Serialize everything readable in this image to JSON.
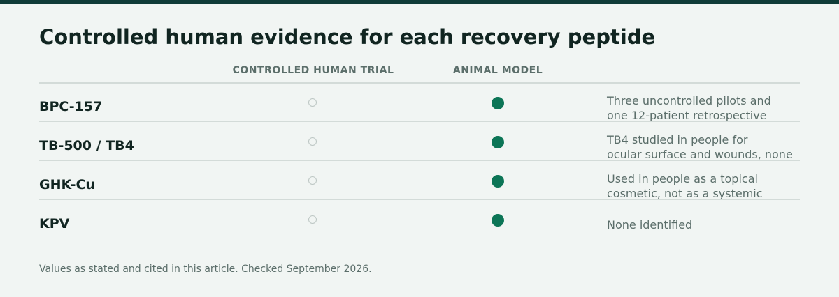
{
  "title": "Controlled human evidence for each recovery peptide",
  "columns": {
    "controlled_trial": "CONTROLLED HUMAN TRIAL",
    "animal_model": "ANIMAL MODEL"
  },
  "colors": {
    "accent": "#0c7556",
    "header_bar": "#103c38",
    "empty_marker": "#bcc6c3"
  },
  "rows": [
    {
      "name": "BPC-157",
      "controlled_human_trial": false,
      "animal_model": true,
      "note_lines": [
        "Three uncontrolled pilots and",
        "one 12-patient retrospective"
      ]
    },
    {
      "name": "TB-500 / TB4",
      "controlled_human_trial": false,
      "animal_model": true,
      "note_lines": [
        "TB4 studied in people for",
        "ocular surface and wounds, none"
      ]
    },
    {
      "name": "GHK-Cu",
      "controlled_human_trial": false,
      "animal_model": true,
      "note_lines": [
        "Used in people as a topical",
        "cosmetic, not as a systemic"
      ]
    },
    {
      "name": "KPV",
      "controlled_human_trial": false,
      "animal_model": true,
      "note_lines": [
        "None identified"
      ]
    }
  ],
  "footnote": "Values as stated and cited in this article. Checked September 2026."
}
